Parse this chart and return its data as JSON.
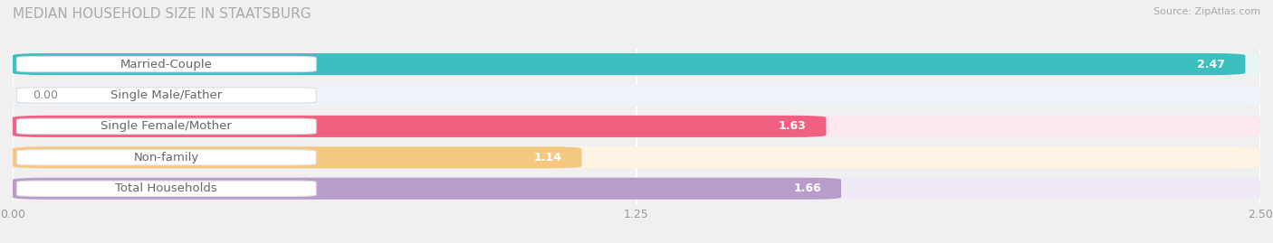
{
  "title": "MEDIAN HOUSEHOLD SIZE IN STAATSBURG",
  "source": "Source: ZipAtlas.com",
  "categories": [
    "Married-Couple",
    "Single Male/Father",
    "Single Female/Mother",
    "Non-family",
    "Total Households"
  ],
  "values": [
    2.47,
    0.0,
    1.63,
    1.14,
    1.66
  ],
  "bar_colors": [
    "#3bbfbf",
    "#a8c8e8",
    "#f06080",
    "#f5c882",
    "#b89ccc"
  ],
  "bar_bg_colors": [
    "#e8f5f5",
    "#eef3fa",
    "#fce8ee",
    "#fdf4e3",
    "#f0eaf6"
  ],
  "xlim": [
    0,
    2.5
  ],
  "xticks": [
    0.0,
    1.25,
    2.5
  ],
  "xtick_labels": [
    "0.00",
    "1.25",
    "2.50"
  ],
  "title_fontsize": 11,
  "label_fontsize": 9.5,
  "value_fontsize": 9,
  "background_color": "#f0f0f0",
  "value_inside_threshold": 0.3
}
